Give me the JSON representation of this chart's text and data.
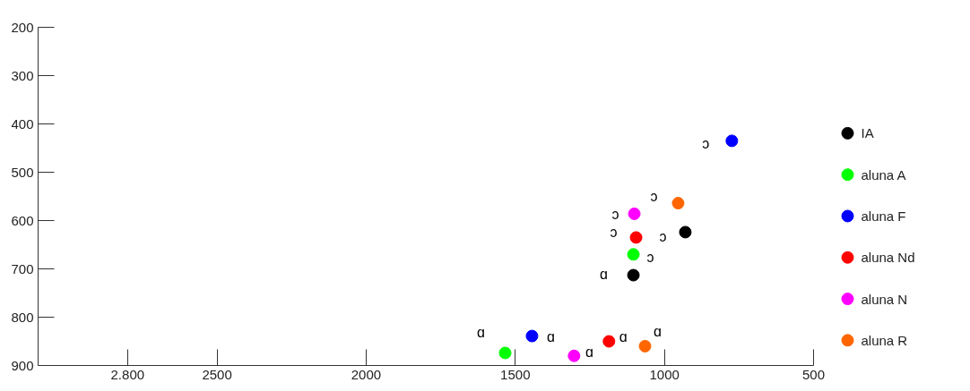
{
  "chart_data": {
    "type": "scatter",
    "marker": "circle",
    "legend": "right",
    "xlim": [
      3100,
      500
    ],
    "ylim": [
      900,
      200
    ],
    "xticks": [
      {
        "value": 2800,
        "label": "2.800"
      },
      2500,
      2000,
      1500,
      1000,
      500
    ],
    "yticks": [
      200,
      300,
      400,
      500,
      600,
      700,
      800,
      900
    ],
    "series": [
      {
        "name": "IA",
        "color": "#000000",
        "x": [
          930,
          1104
        ],
        "values": [
          624,
          713
        ]
      },
      {
        "name": "aluna A",
        "color": "#00ff00",
        "x": [
          1104,
          1534
        ],
        "values": [
          670,
          874
        ]
      },
      {
        "name": "aluna F",
        "color": "#0000ff",
        "x": [
          774,
          1444
        ],
        "values": [
          435,
          839
        ]
      },
      {
        "name": "aluna Nd",
        "color": "#ff0000",
        "x": [
          1095,
          1186
        ],
        "values": [
          635,
          850
        ]
      },
      {
        "name": "aluna N",
        "color": "#ff00ff",
        "x": [
          1101,
          1303
        ],
        "values": [
          586,
          880
        ]
      },
      {
        "name": "aluna R",
        "color": "#ff6600",
        "x": [
          954,
          1065
        ],
        "values": [
          564,
          860
        ]
      }
    ],
    "annotations": [
      {
        "text": "ɔ",
        "x": 774,
        "y": 435
      },
      {
        "text": "ɔ",
        "x": 954,
        "y": 564
      },
      {
        "text": "ɔ",
        "x": 1101,
        "y": 586
      },
      {
        "text": "ɔ",
        "x": 1095,
        "y": 635
      },
      {
        "text": "ɔ",
        "x": 930,
        "y": 624
      },
      {
        "text": "ɔ",
        "x": 1104,
        "y": 670
      },
      {
        "text": "ɑ",
        "x": 1104,
        "y": 713
      },
      {
        "text": "ɑ",
        "x": 1534,
        "y": 874
      },
      {
        "text": "ɑ",
        "x": 1444,
        "y": 839
      },
      {
        "text": "ɑ",
        "x": 1303,
        "y": 880
      },
      {
        "text": "ɑ",
        "x": 1186,
        "y": 850
      },
      {
        "text": "ɑ",
        "x": 1065,
        "y": 860
      }
    ]
  }
}
